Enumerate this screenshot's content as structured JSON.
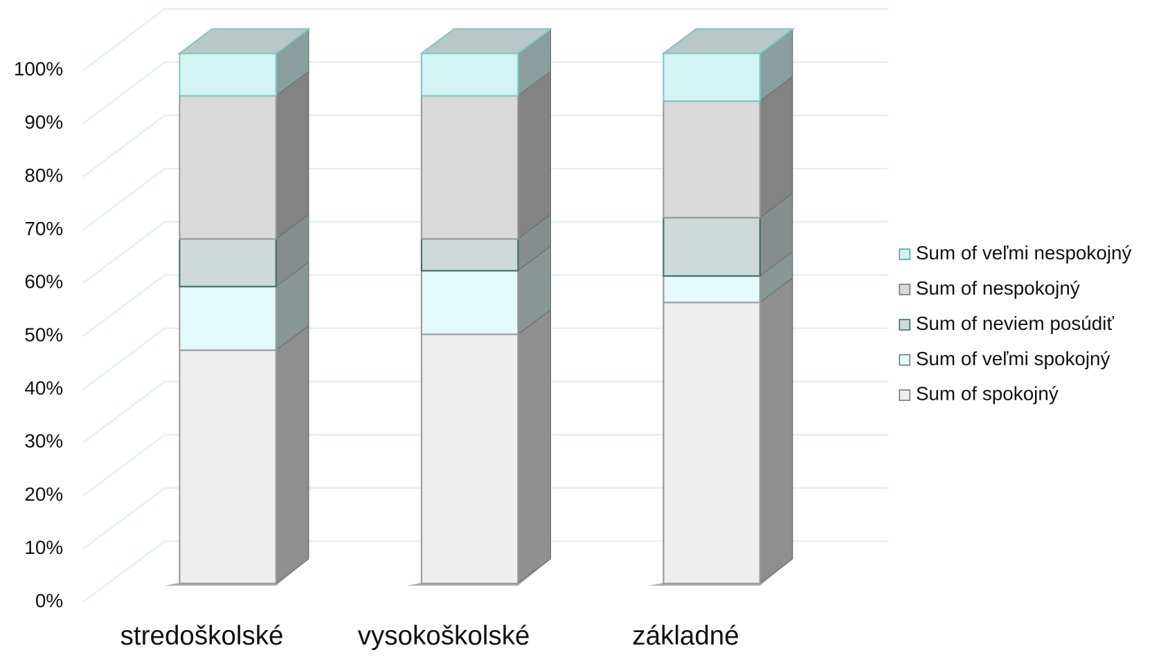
{
  "chart_data": {
    "type": "bar3d_stacked",
    "categories": [
      "stredoškolské",
      "vysokoškolské",
      "základné"
    ],
    "series": [
      {
        "name": "Sum of spokojný",
        "color": "#eeeeee",
        "values": [
          44,
          47,
          53
        ]
      },
      {
        "name": "Sum of veľmi spokojný",
        "color": "#e4fbfb",
        "values": [
          12,
          12,
          5
        ]
      },
      {
        "name": "Sum of neviem posúdiť",
        "color": "#cddad8",
        "values": [
          9,
          6,
          11
        ]
      },
      {
        "name": "Sum of nespokojný",
        "color": "#dadada",
        "values": [
          27,
          27,
          22
        ]
      },
      {
        "name": "Sum of veľmi nespokojný",
        "color": "#d4f3f3",
        "values": [
          8,
          8,
          9
        ]
      }
    ],
    "ylim": [
      0,
      100
    ],
    "yticks": [
      {
        "value": 0,
        "label": "0%"
      },
      {
        "value": 10,
        "label": "10%"
      },
      {
        "value": 20,
        "label": "20%"
      },
      {
        "value": 30,
        "label": "30%"
      },
      {
        "value": 40,
        "label": "40%"
      },
      {
        "value": 50,
        "label": "50%"
      },
      {
        "value": 60,
        "label": "60%"
      },
      {
        "value": 70,
        "label": "70%"
      },
      {
        "value": 80,
        "label": "80%"
      },
      {
        "value": 90,
        "label": "90%"
      },
      {
        "value": 100,
        "label": "100%"
      }
    ],
    "grid": true,
    "legend": "right"
  }
}
